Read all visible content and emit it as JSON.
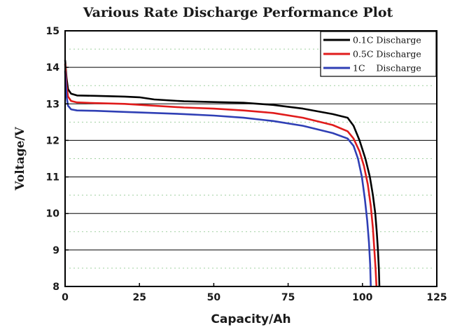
{
  "chart_data": {
    "type": "line",
    "title": "Various Rate Discharge Performance Plot",
    "xlabel": "Capacity/Ah",
    "ylabel": "Voltage/V",
    "xlim": [
      0,
      125
    ],
    "ylim": [
      8,
      15
    ],
    "xticks": [
      0,
      25,
      50,
      75,
      100,
      125
    ],
    "yticks": [
      8,
      9,
      10,
      11,
      12,
      13,
      14,
      15
    ],
    "grid": "horizontal",
    "legend_position": "top-right",
    "series": [
      {
        "name": "0.1C Discharge",
        "color": "#000000",
        "points": [
          [
            0,
            14.2
          ],
          [
            0.5,
            13.7
          ],
          [
            1,
            13.4
          ],
          [
            2,
            13.28
          ],
          [
            4,
            13.23
          ],
          [
            10,
            13.22
          ],
          [
            20,
            13.2
          ],
          [
            25,
            13.18
          ],
          [
            30,
            13.12
          ],
          [
            40,
            13.07
          ],
          [
            50,
            13.05
          ],
          [
            60,
            13.03
          ],
          [
            70,
            12.97
          ],
          [
            80,
            12.87
          ],
          [
            90,
            12.72
          ],
          [
            95,
            12.62
          ],
          [
            97,
            12.4
          ],
          [
            99,
            12.0
          ],
          [
            101,
            11.5
          ],
          [
            102.5,
            11.0
          ],
          [
            103.5,
            10.5
          ],
          [
            104.3,
            10.0
          ],
          [
            104.8,
            9.5
          ],
          [
            105.2,
            9.0
          ],
          [
            105.5,
            8.5
          ],
          [
            105.7,
            8.0
          ]
        ]
      },
      {
        "name": "0.5C Discharge",
        "color": "#e01b1b",
        "points": [
          [
            0,
            14.1
          ],
          [
            0.5,
            13.5
          ],
          [
            1,
            13.2
          ],
          [
            2,
            13.08
          ],
          [
            4,
            13.04
          ],
          [
            10,
            13.02
          ],
          [
            20,
            13.0
          ],
          [
            30,
            12.95
          ],
          [
            40,
            12.9
          ],
          [
            50,
            12.87
          ],
          [
            60,
            12.82
          ],
          [
            70,
            12.75
          ],
          [
            80,
            12.62
          ],
          [
            90,
            12.42
          ],
          [
            95,
            12.25
          ],
          [
            97,
            12.05
          ],
          [
            99,
            11.7
          ],
          [
            100.5,
            11.3
          ],
          [
            101.8,
            10.8
          ],
          [
            102.8,
            10.2
          ],
          [
            103.5,
            9.6
          ],
          [
            104,
            9.0
          ],
          [
            104.4,
            8.5
          ],
          [
            104.7,
            8.0
          ]
        ]
      },
      {
        "name": "1C    Discharge",
        "color": "#2f3fb5",
        "points": [
          [
            0,
            13.9
          ],
          [
            0.5,
            13.2
          ],
          [
            1,
            12.95
          ],
          [
            2,
            12.85
          ],
          [
            4,
            12.82
          ],
          [
            10,
            12.81
          ],
          [
            20,
            12.78
          ],
          [
            30,
            12.75
          ],
          [
            40,
            12.72
          ],
          [
            50,
            12.68
          ],
          [
            60,
            12.62
          ],
          [
            70,
            12.53
          ],
          [
            80,
            12.4
          ],
          [
            90,
            12.2
          ],
          [
            95,
            12.05
          ],
          [
            97,
            11.85
          ],
          [
            98.5,
            11.5
          ],
          [
            99.8,
            11.0
          ],
          [
            100.8,
            10.4
          ],
          [
            101.6,
            9.8
          ],
          [
            102.2,
            9.2
          ],
          [
            102.6,
            8.6
          ],
          [
            102.8,
            8.0
          ]
        ]
      }
    ]
  }
}
